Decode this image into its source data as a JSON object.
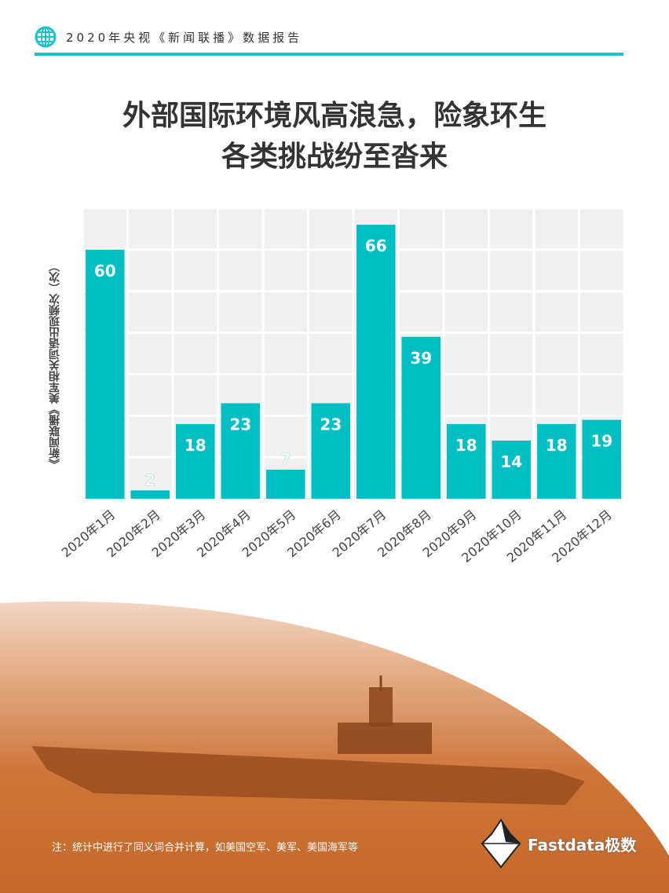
{
  "header": {
    "text": "2020年央视《新闻联播》数据报告",
    "icon": "globe-icon",
    "accent": "#1fc1c7"
  },
  "title": {
    "line1": "外部国际环境风高浪急，险象环生",
    "line2": "各类挑战纷至沓来"
  },
  "chart_data": {
    "type": "bar",
    "categories": [
      "2020年1月",
      "2020年2月",
      "2020年3月",
      "2020年4月",
      "2020年5月",
      "2020年6月",
      "2020年7月",
      "2020年8月",
      "2020年9月",
      "2020年10月",
      "2020年11月",
      "2020年12月"
    ],
    "values": [
      60,
      2,
      18,
      23,
      7,
      23,
      66,
      39,
      18,
      14,
      18,
      19
    ],
    "ylabel": "《新闻联播》美军相关词语出现频次（次）",
    "xlabel": "",
    "ylim": [
      0,
      70
    ],
    "grid": true,
    "data_labels": true,
    "bar_color": "#00bec4"
  },
  "footer": {
    "note": "注：统计中进行了同义词合并计算，如美国空军、美军、美国海军等",
    "logo": "Fastdata极数",
    "photo_tint": "#c86a2a"
  }
}
